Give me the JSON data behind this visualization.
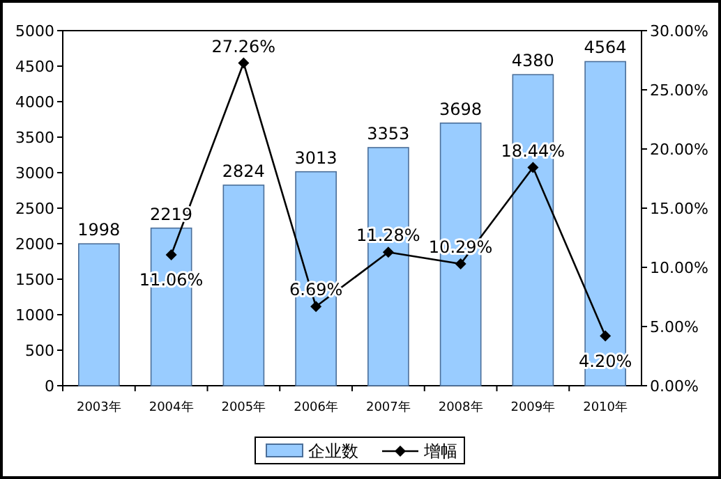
{
  "chart_data": {
    "type": "bar",
    "categories": [
      "2003年",
      "2004年",
      "2005年",
      "2006年",
      "2007年",
      "2008年",
      "2009年",
      "2010年"
    ],
    "series": [
      {
        "name": "企业数",
        "color": "#99ccff",
        "values": [
          1998,
          2219,
          2824,
          3013,
          3353,
          3698,
          4380,
          4564
        ],
        "value_labels": [
          "1998",
          "2219",
          "2824",
          "3013",
          "3353",
          "3698",
          "4380",
          "4564"
        ]
      },
      {
        "name": "增幅",
        "type": "line",
        "axis": "y2",
        "color": "#000000",
        "marker": "diamond",
        "values": [
          null,
          11.06,
          27.26,
          6.69,
          11.28,
          10.29,
          18.44,
          4.2
        ],
        "value_labels": [
          null,
          "11.06%",
          "27.26%",
          "6.69%",
          "11.28%",
          "10.29%",
          "18.44%",
          "4.20%"
        ]
      }
    ],
    "ylim": [
      0,
      5000
    ],
    "yticks": [
      0,
      500,
      1000,
      1500,
      2000,
      2500,
      3000,
      3500,
      4000,
      4500,
      5000
    ],
    "y2lim": [
      0,
      30
    ],
    "y2ticks": [
      {
        "value": 0,
        "label": "0.00%"
      },
      {
        "value": 5,
        "label": "5.00%"
      },
      {
        "value": 10,
        "label": "10.00%"
      },
      {
        "value": 15,
        "label": "15.00%"
      },
      {
        "value": 20,
        "label": "20.00%"
      },
      {
        "value": 25,
        "label": "25.00%"
      },
      {
        "value": 30,
        "label": "30.00%"
      }
    ],
    "legend": "bottom",
    "grid": false
  }
}
